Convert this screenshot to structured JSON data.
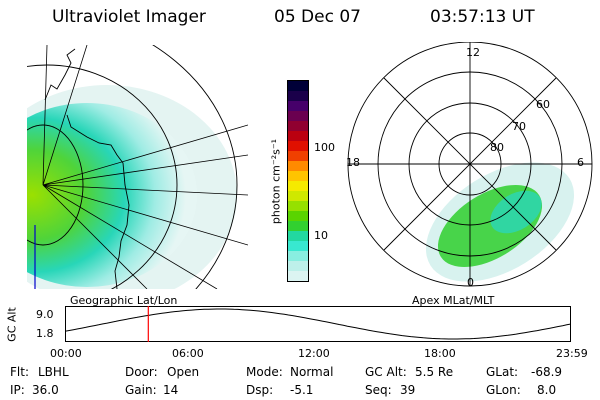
{
  "header": {
    "instrument": "Ultraviolet Imager",
    "date": "05 Dec 07",
    "time": "03:57:13 UT"
  },
  "left_panel": {
    "caption": "Geographic Lat/Lon"
  },
  "right_panel": {
    "caption": "Apex MLat/MLT",
    "mlt_labels": {
      "top": "12",
      "left": "18",
      "right": "6",
      "bottom": "0"
    },
    "lat_labels": [
      "60",
      "70",
      "80"
    ]
  },
  "colorbar": {
    "unit_label": "photon cm⁻²s⁻¹",
    "ticks": [
      {
        "label": "100",
        "value": 100
      },
      {
        "label": "10",
        "value": 10
      }
    ],
    "colors": [
      "#000038",
      "#1a004a",
      "#46006a",
      "#6a0050",
      "#900030",
      "#bb0010",
      "#e01000",
      "#f04000",
      "#ff8a00",
      "#ffc400",
      "#f5ea00",
      "#cfe800",
      "#96e000",
      "#5ad400",
      "#32d030",
      "#22d8a0",
      "#38e8d0",
      "#88eee0",
      "#bdf0ea",
      "#dcf4f2"
    ]
  },
  "orbit_plot": {
    "ylabel": "GC Alt",
    "y_ticks": [
      "9.0",
      "1.8"
    ],
    "x_ticks": [
      "00:00",
      "06:00",
      "12:00",
      "18:00",
      "23:59"
    ],
    "current_marker_hours": 3.95
  },
  "info_rows": [
    [
      {
        "key": "Flt:",
        "value": "LBHL"
      },
      {
        "key": "Door:",
        "value": "Open"
      },
      {
        "key": "Mode:",
        "value": "Normal"
      },
      {
        "key": "GC Alt:",
        "value": "5.5 Re"
      },
      {
        "key": "GLat:",
        "value": "-68.9"
      }
    ],
    [
      {
        "key": "IP:",
        "value": "36.0"
      },
      {
        "key": "Gain:",
        "value": "14"
      },
      {
        "key": "Dsp:",
        "value": "-5.1"
      },
      {
        "key": "Seq:",
        "value": "39"
      },
      {
        "key": "GLon:",
        "value": "8.0"
      }
    ]
  ],
  "colors": {
    "ink": "#000000",
    "marker": "#ff0000",
    "meridian": "#0000cc"
  }
}
